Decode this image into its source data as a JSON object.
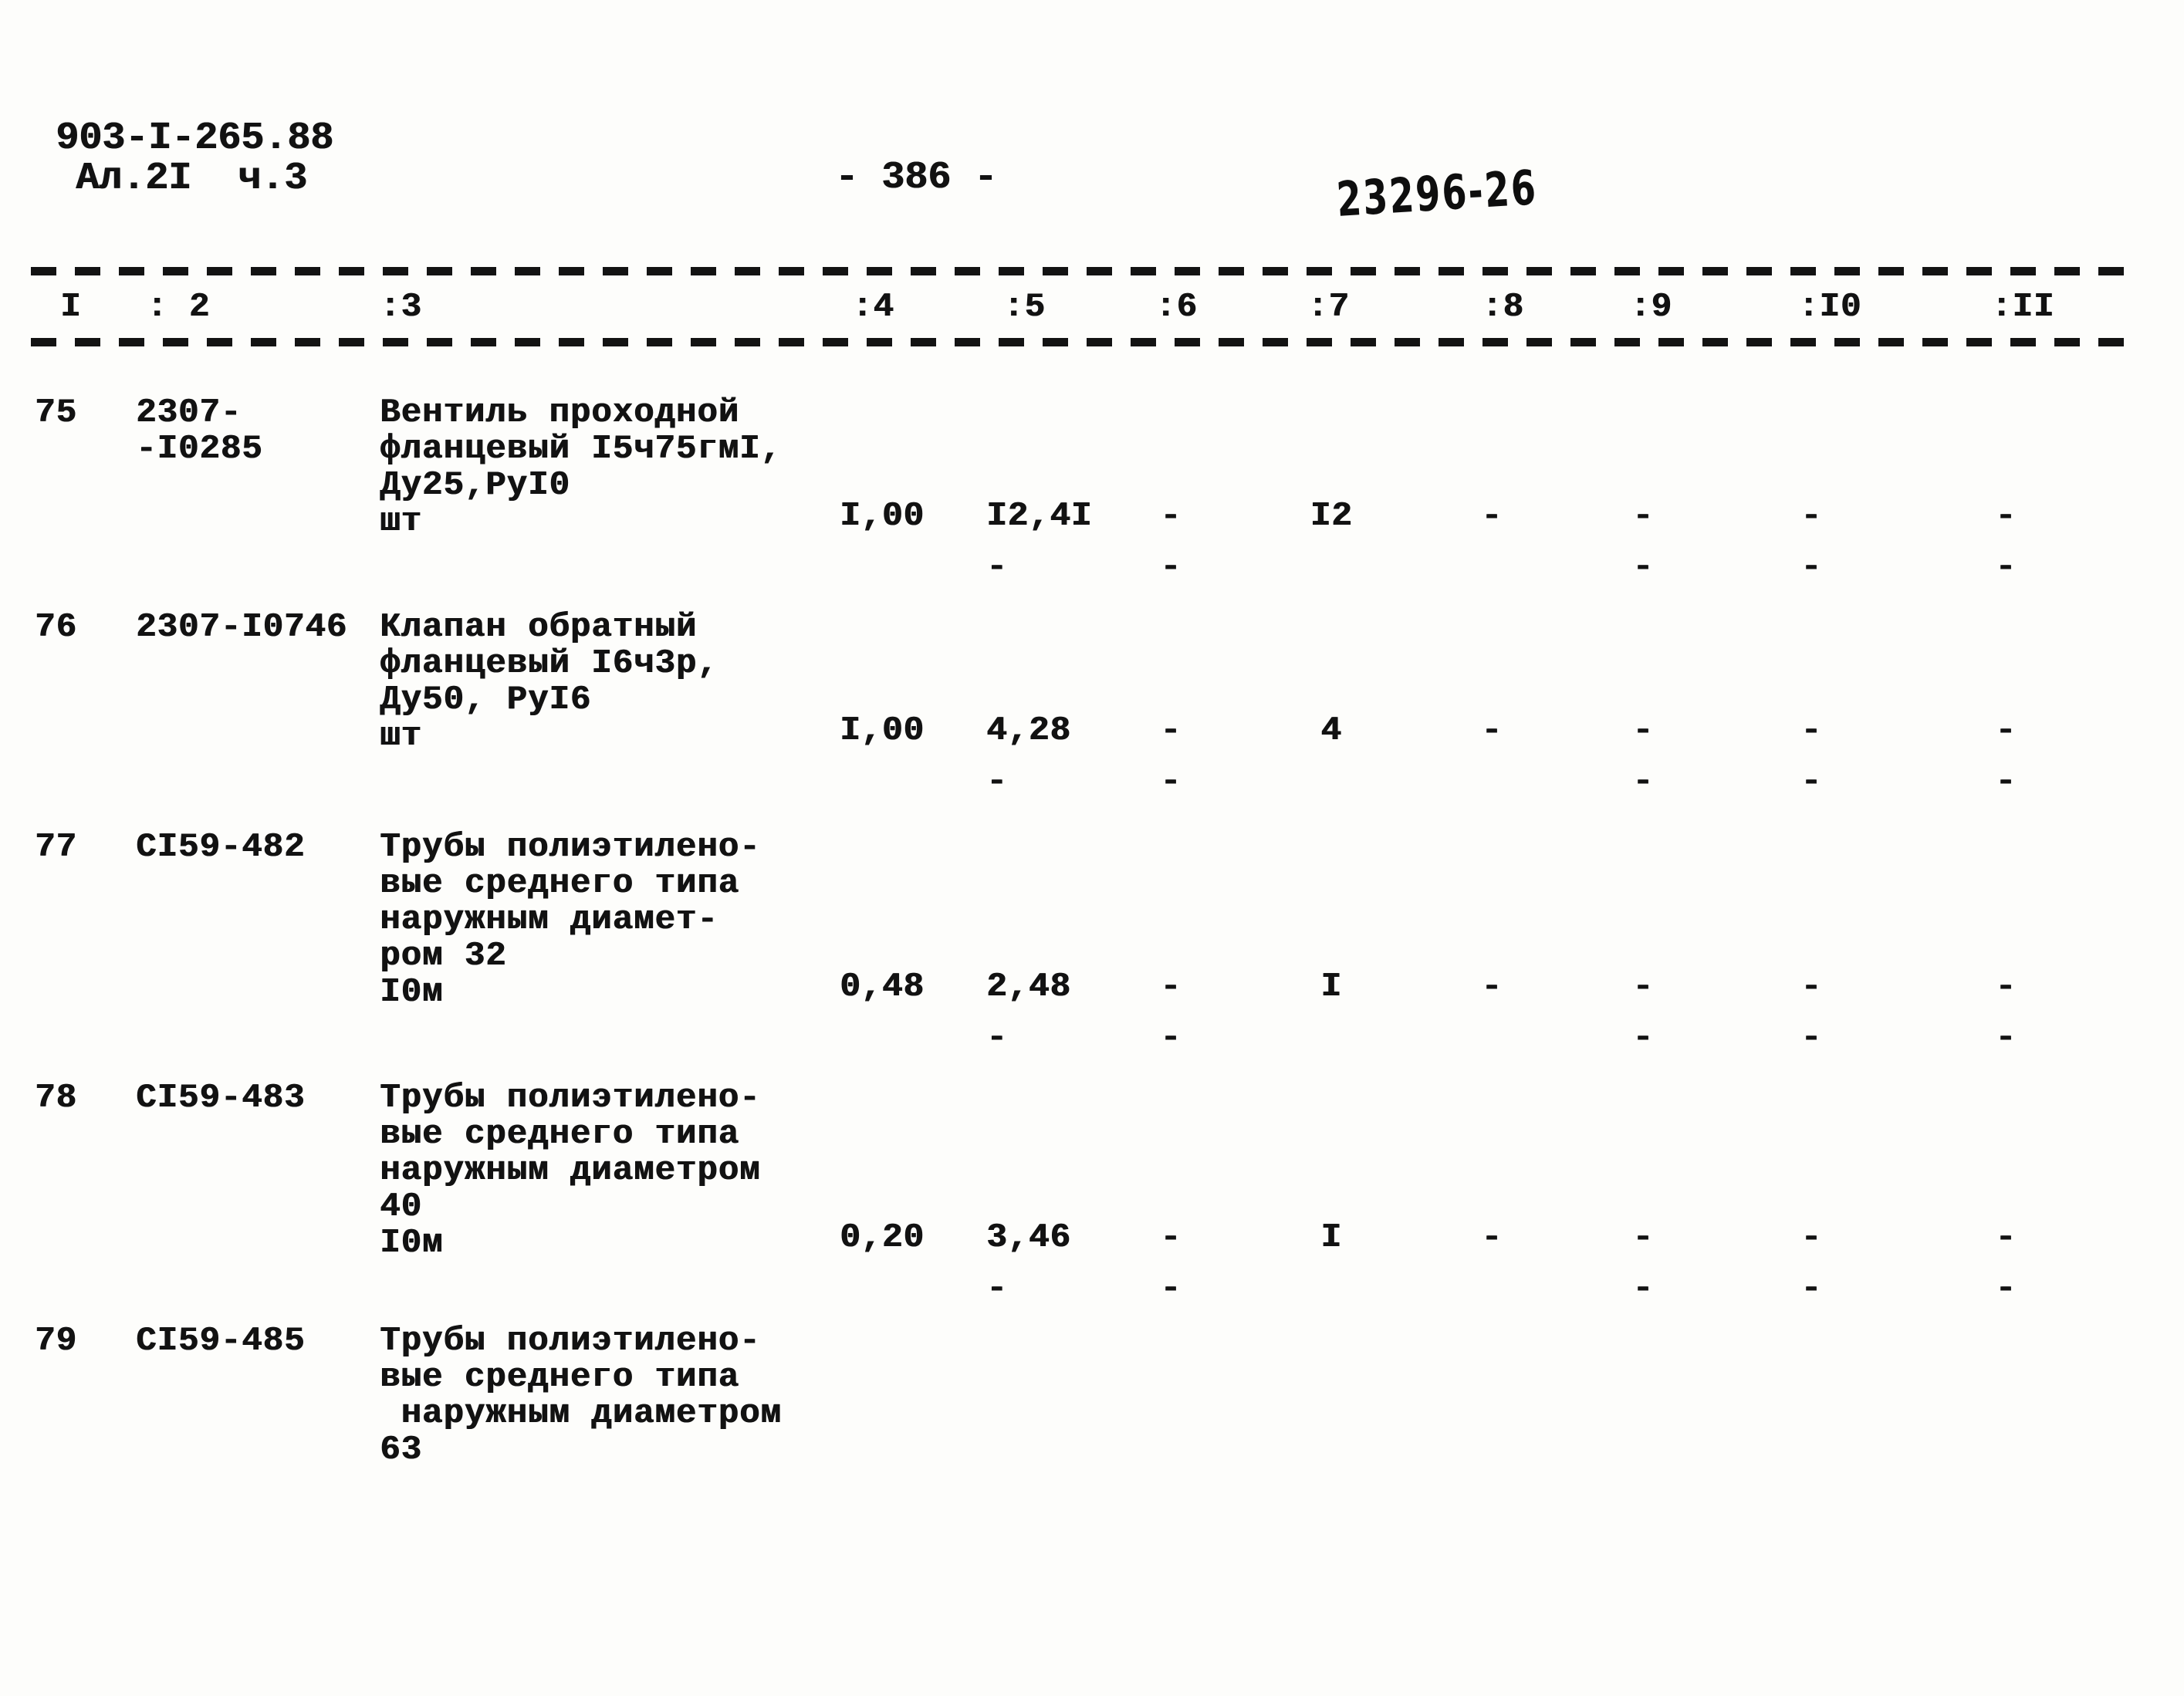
{
  "page": {
    "doc_number": "903-I-265.88",
    "sheet": "Ал.2I  ч.3",
    "page_number": "- 386 -",
    "stamp": "23296-26"
  },
  "table": {
    "column_headers": [
      "I",
      ": 2",
      ":3",
      ":4",
      ":5",
      ":6",
      ":7",
      ":8",
      ":9",
      ":I0",
      ":II"
    ],
    "rows": [
      {
        "num": "75",
        "code_lines": [
          "2307-",
          "-I0285"
        ],
        "desc_lines": [
          "Вентиль проходной",
          "фланцевый I5ч75гмI,",
          "Ду25,РуI0"
        ],
        "unit": "шт",
        "values": {
          "c4": {
            "top": "I,00",
            "bottom": ""
          },
          "c5": {
            "top": "I2,4I",
            "bottom": "-"
          },
          "c6": {
            "top": "-",
            "bottom": "-"
          },
          "c7": {
            "top": "I2",
            "bottom": ""
          },
          "c8": {
            "top": "-",
            "bottom": ""
          },
          "c9": {
            "top": "-",
            "bottom": "-"
          },
          "c10": {
            "top": "-",
            "bottom": "-"
          },
          "c11": {
            "top": "-",
            "bottom": "-"
          }
        }
      },
      {
        "num": "76",
        "code_lines": [
          "2307-I0746"
        ],
        "desc_lines": [
          "Клапан обратный",
          "фланцевый I6ч3р,",
          "Ду50, РуI6"
        ],
        "unit": "шт",
        "values": {
          "c4": {
            "top": "I,00",
            "bottom": ""
          },
          "c5": {
            "top": "4,28",
            "bottom": "-"
          },
          "c6": {
            "top": "-",
            "bottom": "-"
          },
          "c7": {
            "top": "4",
            "bottom": ""
          },
          "c8": {
            "top": "-",
            "bottom": ""
          },
          "c9": {
            "top": "-",
            "bottom": "-"
          },
          "c10": {
            "top": "-",
            "bottom": "-"
          },
          "c11": {
            "top": "-",
            "bottom": "-"
          }
        }
      },
      {
        "num": "77",
        "code_lines": [
          "СI59-482"
        ],
        "desc_lines": [
          "Трубы полиэтилено-",
          "вые среднего типа",
          "наружным диамет-",
          "ром 32"
        ],
        "unit": "I0м",
        "values": {
          "c4": {
            "top": "0,48",
            "bottom": ""
          },
          "c5": {
            "top": "2,48",
            "bottom": "-"
          },
          "c6": {
            "top": "-",
            "bottom": "-"
          },
          "c7": {
            "top": "I",
            "bottom": ""
          },
          "c8": {
            "top": "-",
            "bottom": ""
          },
          "c9": {
            "top": "-",
            "bottom": "-"
          },
          "c10": {
            "top": "-",
            "bottom": "-"
          },
          "c11": {
            "top": "-",
            "bottom": "-"
          }
        }
      },
      {
        "num": "78",
        "code_lines": [
          "СI59-483"
        ],
        "desc_lines": [
          "Трубы полиэтилено-",
          "вые среднего типа",
          "наружным диаметром",
          "40"
        ],
        "unit": "I0м",
        "values": {
          "c4": {
            "top": "0,20",
            "bottom": ""
          },
          "c5": {
            "top": "3,46",
            "bottom": "-"
          },
          "c6": {
            "top": "-",
            "bottom": "-"
          },
          "c7": {
            "top": "I",
            "bottom": ""
          },
          "c8": {
            "top": "-",
            "bottom": ""
          },
          "c9": {
            "top": "-",
            "bottom": "-"
          },
          "c10": {
            "top": "-",
            "bottom": "-"
          },
          "c11": {
            "top": "-",
            "bottom": "-"
          }
        }
      },
      {
        "num": "79",
        "code_lines": [
          "СI59-485"
        ],
        "desc_lines": [
          "Трубы полиэтилено-",
          "вые среднего типа",
          " наружным диаметром",
          "63"
        ],
        "unit": "",
        "values": {}
      }
    ]
  }
}
